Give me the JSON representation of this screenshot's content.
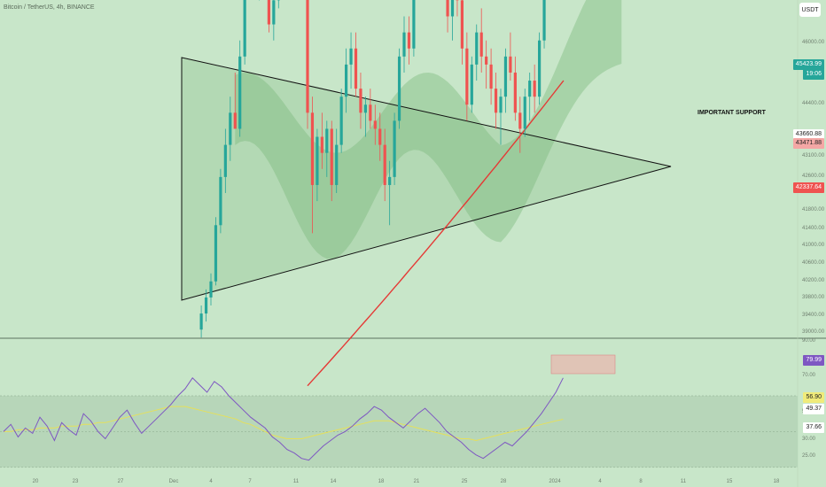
{
  "header": {
    "title": "Bitcoin / TetherUS, 4h, BINANCE",
    "currency": "USDT"
  },
  "annotation": "IMPORTANT SUPPORT",
  "price_tags": {
    "last_price": "45423.99",
    "countdown": "19:06",
    "level_1": "43660.88",
    "level_2": "43471.88",
    "level_3": "42337.64"
  },
  "rsi_tags": {
    "rsi": "79.99",
    "ma": "56.90",
    "mid": "49.37",
    "low": "37.66"
  },
  "colors": {
    "background": "#c8e6c9",
    "up": "#26a69a",
    "down": "#ef5350",
    "ma_line": "#e53935",
    "support_band": "#66bb6a",
    "rsi_line": "#7e57c2",
    "rsi_ma": "#e6e05a"
  },
  "chart_data": [
    {
      "type": "candlestick",
      "symbol": "BTCUSDT",
      "timeframe": "4h",
      "price_axis_ticks": [
        46000.0,
        44400.0,
        43100.0,
        42600.0,
        41800.0,
        41400.0,
        41000.0,
        40600.0,
        40200.0,
        39800.0,
        39400.0,
        39000.0
      ],
      "price_axis_ticks_label": [
        "46000.00",
        "44400.00",
        "43100.00",
        "42600.00",
        "41800.00",
        "41400.00",
        "41000.00",
        "40600.00",
        "40200.00",
        "39800.00",
        "39400.00",
        "39000.00"
      ],
      "x_tick_labels": [
        "20",
        "23",
        "27",
        "Dec",
        "4",
        "7",
        "11",
        "14",
        "18",
        "21",
        "25",
        "28",
        "2024",
        "4",
        "8",
        "11",
        "15",
        "18"
      ],
      "last_price": 45423.99,
      "support_level": 44300,
      "triangle": {
        "upper": [
          [
            37,
            46000
          ],
          [
            136,
            43000
          ]
        ],
        "lower": [
          [
            37,
            39600
          ],
          [
            136,
            43000
          ]
        ]
      },
      "candles": [
        [
          38,
          39400,
          39700,
          39300,
          39600
        ],
        [
          39,
          39600,
          39900,
          39500,
          39800
        ],
        [
          40,
          39800,
          40100,
          39700,
          40000
        ],
        [
          41,
          40000,
          40800,
          39950,
          40700
        ],
        [
          42,
          40700,
          41400,
          40600,
          41300
        ],
        [
          43,
          41300,
          41900,
          41100,
          41700
        ],
        [
          44,
          41700,
          42300,
          41500,
          42100
        ],
        [
          45,
          42100,
          42600,
          41900,
          41900
        ],
        [
          46,
          41900,
          43000,
          41800,
          42800
        ],
        [
          47,
          42800,
          44400,
          42700,
          44200
        ],
        [
          48,
          44200,
          44600,
          43900,
          44100
        ],
        [
          49,
          44100,
          44500,
          43700,
          43800
        ],
        [
          50,
          43800,
          44200,
          43500,
          44000
        ],
        [
          51,
          44000,
          44300,
          43600,
          43700
        ],
        [
          52,
          43700,
          44000,
          43100,
          43200
        ],
        [
          53,
          43200,
          43700,
          43000,
          43500
        ],
        [
          54,
          43500,
          44300,
          43400,
          44200
        ],
        [
          55,
          44200,
          44600,
          44000,
          44500
        ],
        [
          56,
          44500,
          44700,
          44100,
          44300
        ],
        [
          57,
          44300,
          44500,
          43900,
          44000
        ],
        [
          58,
          44000,
          44200,
          43800,
          44100
        ],
        [
          59,
          44100,
          44200,
          43700,
          43900
        ],
        [
          60,
          43900,
          44000,
          41900,
          42100
        ],
        [
          61,
          42100,
          42300,
          40600,
          41200
        ],
        [
          62,
          41200,
          41900,
          41000,
          41800
        ],
        [
          63,
          41800,
          42100,
          41400,
          41600
        ],
        [
          64,
          41600,
          42000,
          41300,
          41900
        ],
        [
          65,
          41900,
          42000,
          41000,
          41200
        ],
        [
          66,
          41200,
          41900,
          41100,
          41700
        ],
        [
          67,
          41700,
          42400,
          41600,
          42300
        ],
        [
          68,
          42300,
          42900,
          42100,
          42700
        ],
        [
          69,
          42700,
          43100,
          42400,
          42900
        ],
        [
          70,
          42900,
          43100,
          42300,
          42400
        ],
        [
          71,
          42400,
          42600,
          41900,
          42100
        ],
        [
          72,
          42100,
          42300,
          41800,
          42200
        ],
        [
          73,
          42200,
          42400,
          41900,
          42000
        ],
        [
          74,
          42000,
          42200,
          41700,
          41900
        ],
        [
          75,
          41900,
          42100,
          41500,
          41700
        ],
        [
          76,
          41700,
          41900,
          41000,
          41200
        ],
        [
          77,
          41200,
          41500,
          40700,
          41300
        ],
        [
          78,
          41300,
          42100,
          41200,
          42000
        ],
        [
          79,
          42000,
          42900,
          41900,
          42800
        ],
        [
          80,
          42800,
          43300,
          42600,
          43100
        ],
        [
          81,
          43100,
          43300,
          42700,
          42900
        ],
        [
          82,
          42900,
          44300,
          42800,
          44200
        ],
        [
          83,
          44200,
          44500,
          43900,
          44100
        ],
        [
          84,
          44100,
          44400,
          43800,
          44000
        ],
        [
          85,
          44000,
          44300,
          43700,
          43900
        ],
        [
          86,
          43900,
          44200,
          43600,
          44100
        ],
        [
          87,
          44100,
          44400,
          43800,
          44000
        ],
        [
          88,
          44000,
          44300,
          43600,
          43800
        ],
        [
          89,
          43800,
          44000,
          43100,
          43300
        ],
        [
          90,
          43300,
          43800,
          43000,
          43700
        ],
        [
          91,
          43700,
          44000,
          43300,
          43500
        ],
        [
          92,
          43500,
          43700,
          42700,
          42900
        ],
        [
          93,
          42900,
          43100,
          42000,
          42200
        ],
        [
          94,
          42200,
          42800,
          42100,
          42700
        ],
        [
          95,
          42700,
          43200,
          42500,
          43100
        ],
        [
          96,
          43100,
          43400,
          42600,
          42800
        ],
        [
          97,
          42800,
          43000,
          42400,
          42700
        ],
        [
          98,
          42700,
          42900,
          42200,
          42400
        ],
        [
          99,
          42400,
          42600,
          41900,
          42100
        ],
        [
          100,
          42100,
          42400,
          41700,
          42300
        ],
        [
          101,
          42300,
          42900,
          42100,
          42800
        ],
        [
          102,
          42800,
          43100,
          42500,
          42600
        ],
        [
          103,
          42600,
          42800,
          42000,
          42100
        ],
        [
          104,
          42100,
          42300,
          41600,
          41900
        ],
        [
          105,
          41900,
          42400,
          41800,
          42300
        ],
        [
          106,
          42300,
          42600,
          42000,
          42500
        ],
        [
          107,
          42500,
          42700,
          42100,
          42300
        ],
        [
          108,
          42300,
          43100,
          42200,
          43000
        ],
        [
          109,
          43000,
          44400,
          42900,
          44300
        ],
        [
          110,
          44300,
          45500,
          44200,
          45423.99
        ]
      ],
      "sma_200_sample": [
        [
          57,
          38900
        ],
        [
          110,
          42300
        ]
      ],
      "ichimoku_cloud": true
    },
    {
      "type": "line",
      "name": "RSI",
      "y_ticks": [
        90.0,
        70.0,
        50.0,
        30.0,
        25.0
      ],
      "y_ticks_label": [
        "90.00",
        "70.00",
        "50.00",
        "30.00",
        "25.00"
      ],
      "band": [
        30,
        70
      ],
      "last_values": {
        "rsi": 79.99,
        "ma": 56.9
      },
      "rsi_series": [
        50,
        54,
        47,
        52,
        49,
        58,
        53,
        45,
        55,
        51,
        48,
        60,
        56,
        50,
        46,
        52,
        58,
        62,
        55,
        49,
        53,
        57,
        61,
        65,
        70,
        74,
        80,
        76,
        72,
        78,
        75,
        70,
        66,
        62,
        58,
        55,
        52,
        47,
        44,
        40,
        38,
        35,
        34,
        38,
        42,
        45,
        48,
        50,
        53,
        57,
        60,
        64,
        62,
        58,
        55,
        52,
        56,
        60,
        63,
        59,
        55,
        50,
        47,
        44,
        40,
        37,
        35,
        38,
        41,
        44,
        42,
        46,
        50,
        55,
        60,
        66,
        72,
        79.99
      ],
      "ma_series": [
        50,
        50,
        51,
        51,
        51,
        52,
        52,
        52,
        53,
        53,
        53,
        54,
        54,
        55,
        55,
        56,
        57,
        58,
        59,
        60,
        61,
        62,
        63,
        64,
        64,
        64,
        63,
        62,
        61,
        60,
        59,
        58,
        57,
        55,
        54,
        52,
        50,
        48,
        47,
        46,
        46,
        46,
        47,
        48,
        49,
        50,
        51,
        52,
        53,
        54,
        55,
        56,
        56,
        56,
        55,
        54,
        53,
        52,
        51,
        50,
        49,
        48,
        47,
        46,
        46,
        45,
        46,
        47,
        48,
        49,
        50,
        51,
        52,
        53,
        54,
        55,
        56,
        56.9
      ]
    }
  ]
}
